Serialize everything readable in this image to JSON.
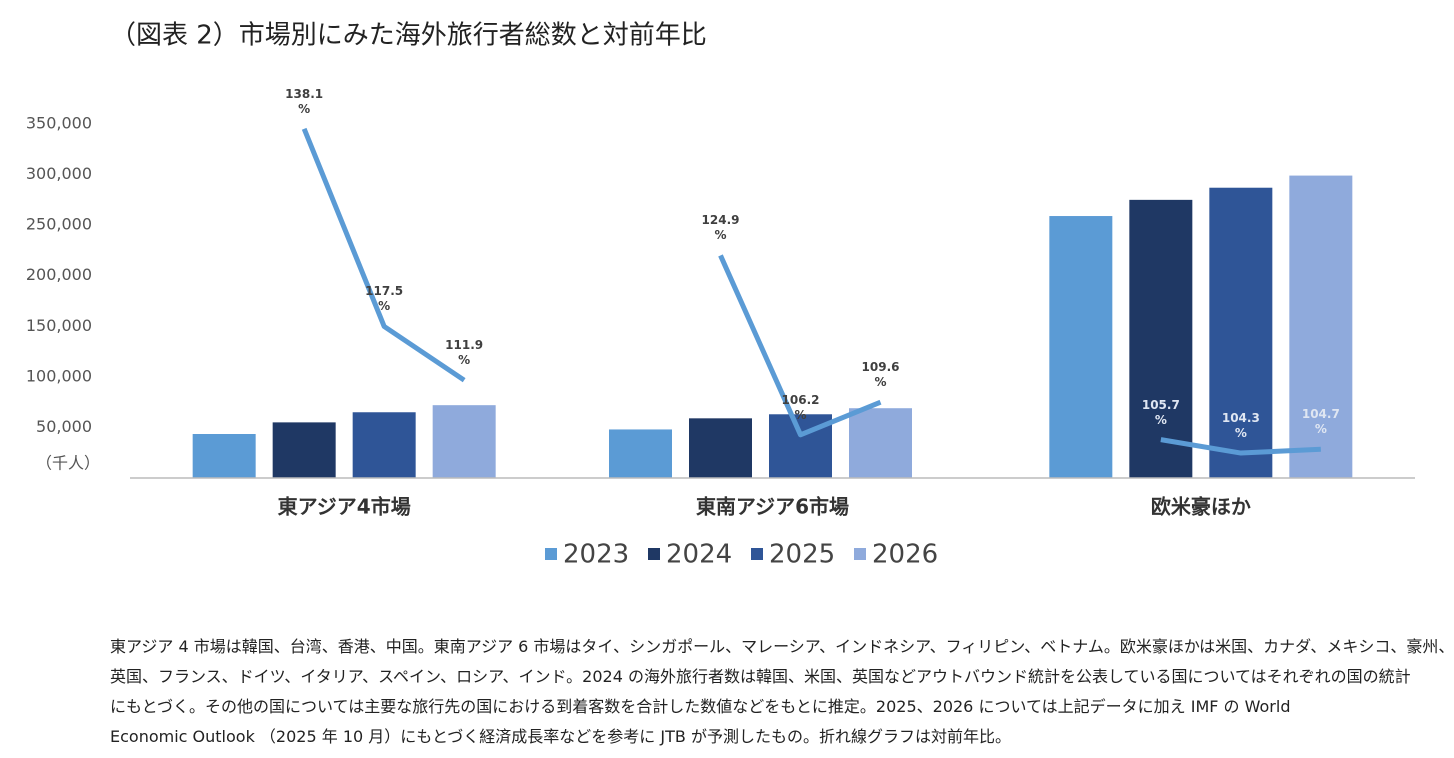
{
  "chart_data": {
    "type": "bar_line",
    "title": "（図表 2）市場別にみた海外旅行者総数と対前年比",
    "categories": [
      "東アジア4市場",
      "東南アジア6市場",
      "欧米豪ほか"
    ],
    "series": [
      {
        "name": "2023",
        "color": "#5b9bd5",
        "values": [
          43500,
          48000,
          259000
        ]
      },
      {
        "name": "2024",
        "color": "#1f3864",
        "values": [
          55000,
          59000,
          275000
        ]
      },
      {
        "name": "2025",
        "color": "#2f5597",
        "values": [
          65000,
          63000,
          287000
        ]
      },
      {
        "name": "2026",
        "color": "#8faadc",
        "values": [
          72000,
          69000,
          299000
        ]
      }
    ],
    "lines": [
      {
        "axis": "y2",
        "color": "#5b9bd5",
        "label_color": "#404040",
        "values": [
          138.1,
          117.5,
          111.9
        ],
        "value_labels": [
          "138.1 %",
          "117.5 %",
          "111.9 %"
        ]
      },
      {
        "axis": "y2",
        "color": "#5b9bd5",
        "label_color": "#404040",
        "values": [
          124.9,
          106.2,
          109.6
        ],
        "value_labels": [
          "124.9 %",
          "106.2 %",
          "109.6 %"
        ]
      },
      {
        "axis": "y2",
        "color": "#5b9bd5",
        "label_color": "#dfe6f2",
        "values": [
          105.7,
          104.3,
          104.7
        ],
        "value_labels": [
          "105.7 %",
          "104.3 %",
          "104.7 %"
        ]
      }
    ],
    "ylim": [
      0,
      350000
    ],
    "yticks": [
      {
        "value": 50000,
        "label": "50,000"
      },
      {
        "value": 100000,
        "label": "100,000"
      },
      {
        "value": 150000,
        "label": "150,000"
      },
      {
        "value": 200000,
        "label": "200,000"
      },
      {
        "value": 250000,
        "label": "250,000"
      },
      {
        "value": 300000,
        "label": "300,000"
      },
      {
        "value": 350000,
        "label": "350,000"
      }
    ],
    "y_unit": "（千人）",
    "y2lim": [
      101.7,
      138.6
    ]
  },
  "note": [
    "東アジア 4 市場は韓国、台湾、香港、中国。東南アジア 6 市場はタイ、シンガポール、マレーシア、インドネシア、フィリピン、ベトナム。欧米豪ほかは米国、カナダ、メキシコ、豪州、",
    "英国、フランス、ドイツ、イタリア、スペイン、ロシア、インド。2024 の海外旅行者数は韓国、米国、英国などアウトバウンド統計を公表している国についてはそれぞれの国の統計",
    "にもとづく。その他の国については主要な旅行先の国における到着客数を合計した数値などをもとに推定。2025、2026 については上記データに加え IMF の World",
    "Economic Outlook （2025 年 10 月）にもとづく経済成長率などを参考に JTB が予測したもの。折れ線グラフは対前年比。"
  ]
}
